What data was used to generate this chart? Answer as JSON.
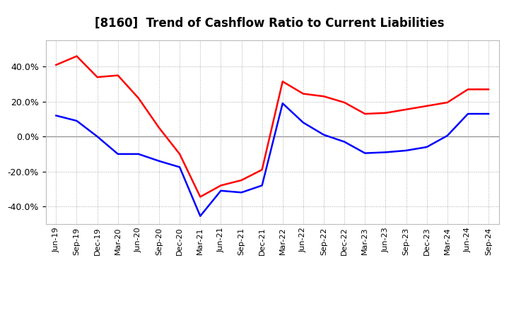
{
  "title": "[8160]  Trend of Cashflow Ratio to Current Liabilities",
  "x_labels": [
    "Jun-19",
    "Sep-19",
    "Dec-19",
    "Mar-20",
    "Jun-20",
    "Sep-20",
    "Dec-20",
    "Mar-21",
    "Jun-21",
    "Sep-21",
    "Dec-21",
    "Mar-22",
    "Jun-22",
    "Sep-22",
    "Dec-22",
    "Mar-23",
    "Jun-23",
    "Sep-23",
    "Dec-23",
    "Mar-24",
    "Jun-24",
    "Sep-24"
  ],
  "operating_cf_full": [
    0.41,
    0.46,
    0.34,
    0.35,
    0.22,
    0.05,
    -0.1,
    -0.345,
    -0.28,
    -0.25,
    -0.19,
    0.315,
    0.245,
    0.23,
    0.195,
    0.13,
    0.135,
    0.155,
    0.175,
    0.195,
    0.27,
    0.27
  ],
  "free_cf_full": [
    0.12,
    0.09,
    0.0,
    -0.1,
    -0.1,
    -0.14,
    -0.175,
    -0.455,
    -0.31,
    -0.32,
    -0.28,
    0.19,
    0.08,
    0.01,
    -0.03,
    -0.095,
    -0.09,
    -0.08,
    -0.06,
    0.005,
    0.13,
    0.13
  ],
  "operating_color": "#FF0000",
  "free_color": "#0000FF",
  "ylim": [
    -0.5,
    0.55
  ],
  "yticks": [
    -0.4,
    -0.2,
    0.0,
    0.2,
    0.4
  ],
  "background_color": "#FFFFFF",
  "plot_bg_color": "#FFFFFF",
  "grid_color": "#AAAAAA",
  "title_fontsize": 12,
  "legend_fontsize": 9.5
}
